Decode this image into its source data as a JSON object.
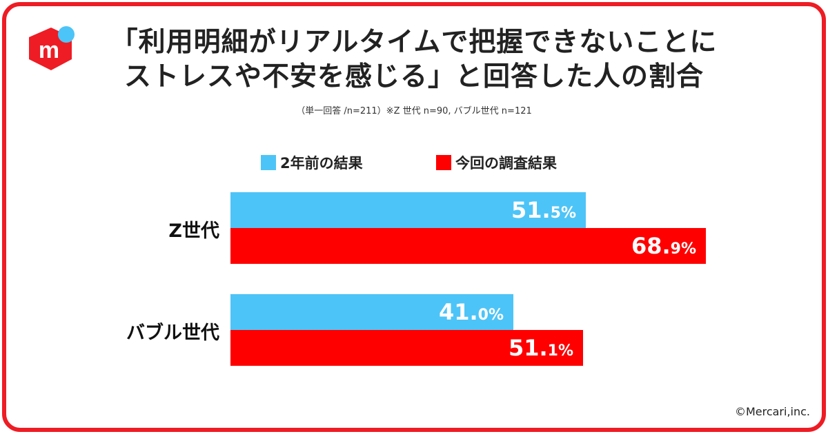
{
  "header": {
    "title_line1": "「利用明細がリアルタイムで把握できないことに",
    "title_line2": "ストレスや不安を感じる」と回答した人の割合",
    "note": "（単一回答 /n=211）※Z 世代 n=90, バブル世代 n=121"
  },
  "logo": {
    "letter": "m"
  },
  "colors": {
    "accent": "#ee1c24",
    "previous": "#4dc4f7",
    "current": "#ff0000"
  },
  "chart_data": {
    "type": "bar",
    "orientation": "horizontal",
    "categories": [
      "Z世代",
      "バブル世代"
    ],
    "series": [
      {
        "name": "2年前の結果",
        "values": [
          51.5,
          41.0
        ]
      },
      {
        "name": "今回の調査結果",
        "values": [
          68.9,
          51.1
        ]
      }
    ],
    "xlim": [
      0,
      100
    ],
    "unit": "%",
    "legend": "top-center",
    "grid": false
  },
  "footer": {
    "copyright": "©Mercari,inc."
  }
}
